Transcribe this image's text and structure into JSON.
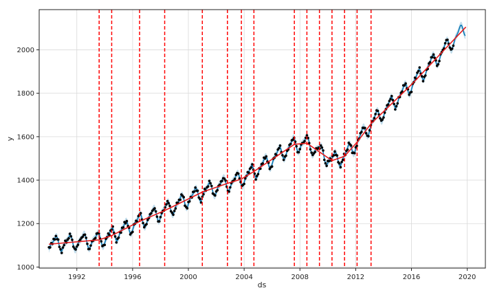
{
  "chart_data": {
    "type": "line",
    "title": "",
    "xlabel": "ds",
    "ylabel": "y",
    "xlim": [
      1989.3,
      2021.3
    ],
    "ylim": [
      995,
      2185
    ],
    "grid": true,
    "x_ticks": [
      1992,
      1996,
      2000,
      2004,
      2008,
      2012,
      2016,
      2020
    ],
    "y_ticks": [
      1000,
      1200,
      1400,
      1600,
      1800,
      2000
    ],
    "colors": {
      "observed": "#000000",
      "forecast": "#0072B2",
      "interval": "#9ecae1",
      "trend": "#e41a1c",
      "changepoint": "#ff0000"
    },
    "changepoints": [
      1993.6,
      1994.5,
      1996.5,
      1998.3,
      2001.0,
      2002.8,
      2003.8,
      2004.7,
      2007.6,
      2008.5,
      2009.4,
      2010.3,
      2011.2,
      2012.1,
      2013.1
    ],
    "trend": {
      "x": [
        1990.0,
        1993.6,
        1994.5,
        1996.5,
        1998.3,
        2001.0,
        2002.8,
        2003.8,
        2004.7,
        2007.6,
        2008.5,
        2009.4,
        2010.3,
        2011.2,
        2012.1,
        2013.1,
        2016.0,
        2019.9
      ],
      "y": [
        1105,
        1125,
        1145,
        1210,
        1260,
        1345,
        1385,
        1405,
        1440,
        1565,
        1570,
        1530,
        1490,
        1510,
        1575,
        1660,
        1840,
        2105
      ]
    },
    "seasonality": {
      "amplitude": 30,
      "period_years": 1
    }
  }
}
